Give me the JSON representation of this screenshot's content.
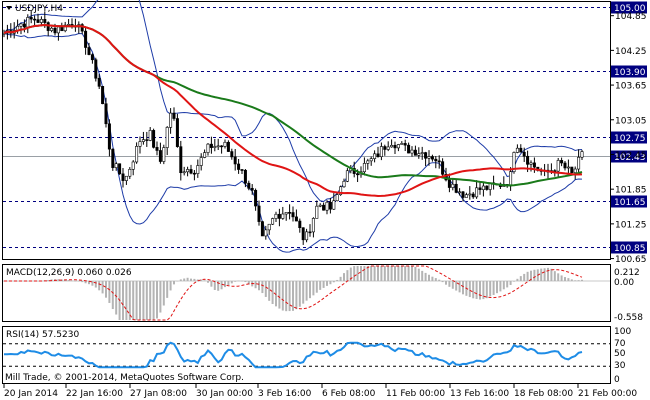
{
  "chart": {
    "symbol_label": "USDJPY,H4",
    "price_levels": [
      {
        "value": "105.00",
        "style": "dash",
        "tag": true
      },
      {
        "value": "103.90",
        "style": "dash",
        "tag": true
      },
      {
        "value": "102.75",
        "style": "dash",
        "tag": true
      },
      {
        "value": "102.43",
        "style": "current",
        "tag": true
      },
      {
        "value": "101.65",
        "style": "dash",
        "tag": true
      },
      {
        "value": "100.85",
        "style": "dash",
        "tag": true
      }
    ],
    "price_axis_ticks": [
      "104.85",
      "104.25",
      "103.65",
      "103.05",
      "102.45",
      "101.85",
      "101.25",
      "100.65"
    ],
    "time_labels": [
      "20 Jan 2014",
      "22 Jan 16:00",
      "27 Jan 08:00",
      "30 Jan 00:00",
      "3 Feb 16:00",
      "6 Feb 08:00",
      "11 Feb 00:00",
      "13 Feb 16:00",
      "18 Feb 08:00",
      "21 Feb 00:00"
    ],
    "colors": {
      "candle": "#000000",
      "bollinger": "#1e3ca8",
      "ma_fast": "#e01414",
      "ma_slow": "#1a7a1a",
      "level_tag": "#000080",
      "macd_hist": "#b4b4b4",
      "macd_signal": "#e01414",
      "rsi_line": "#1e8ce6"
    }
  },
  "macd": {
    "label": "MACD(12,26,9) 0.060 0.026",
    "ticks": [
      "0.212",
      "0.00",
      "-0.558"
    ]
  },
  "rsi": {
    "label": "RSI(14) 57.5230",
    "ticks": [
      "100",
      "70",
      "50",
      "30",
      "0"
    ]
  },
  "footer": {
    "copyright": "Mill Trade, © 2001-2014, MetaQuotes Software Corp."
  }
}
